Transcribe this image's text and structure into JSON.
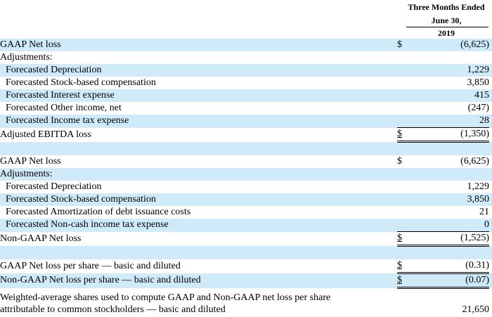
{
  "header": {
    "line1": "Three Months Ended",
    "line2": "June 30,",
    "line3": "2019"
  },
  "section1": {
    "gaap_net_loss": {
      "label": "GAAP Net loss",
      "currency": "$",
      "value": "(6,625)"
    },
    "adjustments_label": "Adjustments:",
    "items": [
      {
        "label": "Forecasted Depreciation",
        "value": "1,229"
      },
      {
        "label": "Forecasted Stock-based compensation",
        "value": "3,850"
      },
      {
        "label": "Forecasted Interest expense",
        "value": "415"
      },
      {
        "label": "Forecasted Other income, net",
        "value": "(247)"
      },
      {
        "label": "Forecasted Income tax expense",
        "value": "28"
      }
    ],
    "total": {
      "label": "Adjusted EBITDA loss",
      "currency": "$",
      "value": "(1,350)"
    }
  },
  "section2": {
    "gaap_net_loss": {
      "label": "GAAP Net loss",
      "currency": "$",
      "value": "(6,625)"
    },
    "adjustments_label": "Adjustments:",
    "items": [
      {
        "label": "Forecasted Depreciation",
        "value": "1,229"
      },
      {
        "label": "Forecasted Stock-based compensation",
        "value": "3,850"
      },
      {
        "label": "Forecasted Amortization of debt issuance costs",
        "value": "21"
      },
      {
        "label": "Forecasted Non-cash income tax expense",
        "value": "0"
      }
    ],
    "total": {
      "label": "Non-GAAP Net loss",
      "currency": "$",
      "value": "(1,525)"
    }
  },
  "per_share": {
    "gaap": {
      "label": "GAAP Net loss per share — basic and diluted",
      "currency": "$",
      "value": "(0.31)"
    },
    "non_gaap": {
      "label": "Non-GAAP Net loss per share — basic and diluted",
      "currency": "$",
      "value": "(0.07)"
    },
    "weighted": {
      "label_line1": "Weighted-average shares used to compute GAAP and Non-GAAP net loss per share",
      "label_line2": "attributable to common stockholders — basic and diluted",
      "value": "21,650"
    }
  },
  "colors": {
    "row_shade": "#cfeaf9",
    "text": "#000000"
  }
}
